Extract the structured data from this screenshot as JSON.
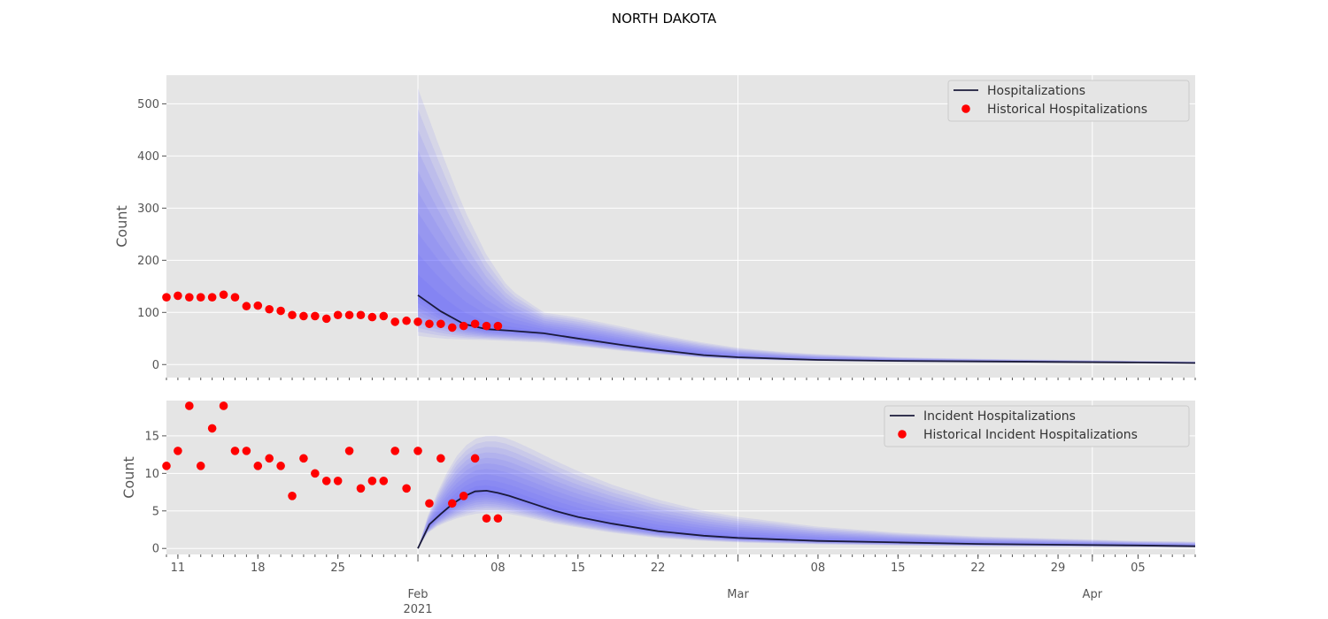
{
  "title": "NORTH DAKOTA",
  "colors": {
    "band": "#5555ff",
    "median": "#1a1a3a",
    "historical": "#ff0000",
    "panel": "#e5e5e5",
    "grid": "#ffffff"
  },
  "x_axis": {
    "start": "2021-01-10",
    "end": "2021-04-10",
    "day_ticks": [
      {
        "date": "2021-01-11",
        "label": "11"
      },
      {
        "date": "2021-01-18",
        "label": "18"
      },
      {
        "date": "2021-01-25",
        "label": "25"
      },
      {
        "date": "2021-02-08",
        "label": "08"
      },
      {
        "date": "2021-02-15",
        "label": "15"
      },
      {
        "date": "2021-02-22",
        "label": "22"
      },
      {
        "date": "2021-03-08",
        "label": "08"
      },
      {
        "date": "2021-03-15",
        "label": "15"
      },
      {
        "date": "2021-03-22",
        "label": "22"
      },
      {
        "date": "2021-03-29",
        "label": "29"
      },
      {
        "date": "2021-04-05",
        "label": "05"
      }
    ],
    "month_ticks": [
      {
        "date": "2021-02-01",
        "label": "Feb",
        "sublabel": "2021"
      },
      {
        "date": "2021-03-01",
        "label": "Mar",
        "sublabel": ""
      },
      {
        "date": "2021-04-01",
        "label": "Apr",
        "sublabel": ""
      }
    ]
  },
  "chart_data": [
    {
      "type": "line",
      "ylabel": "Count",
      "ylim": [
        -25,
        555
      ],
      "yticks": [
        0,
        100,
        200,
        300,
        400,
        500
      ],
      "legend_position": "top-right",
      "series": [
        {
          "name": "Hospitalizations",
          "kind": "line",
          "x": [
            "2021-02-01",
            "2021-02-03",
            "2021-02-05",
            "2021-02-07",
            "2021-02-09",
            "2021-02-12",
            "2021-02-15",
            "2021-02-19",
            "2021-02-22",
            "2021-02-26",
            "2021-03-01",
            "2021-03-05",
            "2021-03-08",
            "2021-03-15",
            "2021-03-22",
            "2021-03-29",
            "2021-04-05",
            "2021-04-10"
          ],
          "y": [
            133,
            102,
            78,
            68,
            65,
            60,
            50,
            37,
            28,
            18,
            14,
            11,
            9,
            7,
            6,
            5,
            4,
            3
          ]
        },
        {
          "name": "Historical Hospitalizations",
          "kind": "scatter",
          "x": [
            "2021-01-10",
            "2021-01-11",
            "2021-01-12",
            "2021-01-13",
            "2021-01-14",
            "2021-01-15",
            "2021-01-16",
            "2021-01-17",
            "2021-01-18",
            "2021-01-19",
            "2021-01-20",
            "2021-01-21",
            "2021-01-22",
            "2021-01-23",
            "2021-01-24",
            "2021-01-25",
            "2021-01-26",
            "2021-01-27",
            "2021-01-28",
            "2021-01-29",
            "2021-01-30",
            "2021-01-31",
            "2021-02-01",
            "2021-02-02",
            "2021-02-03",
            "2021-02-04",
            "2021-02-05",
            "2021-02-06",
            "2021-02-07",
            "2021-02-08"
          ],
          "y": [
            129,
            132,
            129,
            129,
            129,
            134,
            129,
            112,
            113,
            106,
            103,
            95,
            93,
            93,
            88,
            95,
            95,
            95,
            91,
            93,
            82,
            84,
            82,
            78,
            78,
            71,
            74,
            78,
            74,
            74
          ]
        }
      ],
      "band": {
        "x": [
          "2021-02-01",
          "2021-02-03",
          "2021-02-05",
          "2021-02-07",
          "2021-02-09",
          "2021-02-12",
          "2021-02-15",
          "2021-02-19",
          "2021-02-22",
          "2021-02-26",
          "2021-03-01",
          "2021-03-05",
          "2021-03-08",
          "2021-03-15",
          "2021-03-22",
          "2021-03-29",
          "2021-04-05",
          "2021-04-10"
        ],
        "upper": [
          530,
          410,
          300,
          210,
          145,
          100,
          90,
          72,
          58,
          42,
          32,
          24,
          20,
          14,
          11,
          9,
          7,
          6
        ],
        "lower": [
          55,
          50,
          48,
          47,
          45,
          42,
          35,
          26,
          20,
          13,
          10,
          8,
          7,
          5,
          4,
          3.5,
          3,
          2.5
        ]
      }
    },
    {
      "type": "line",
      "ylabel": "Count",
      "ylim": [
        -0.8,
        19.7
      ],
      "yticks": [
        0,
        5,
        10,
        15
      ],
      "legend_position": "top-right",
      "series": [
        {
          "name": "Incident Hospitalizations",
          "kind": "line",
          "x": [
            "2021-02-01",
            "2021-02-02",
            "2021-02-03",
            "2021-02-04",
            "2021-02-05",
            "2021-02-06",
            "2021-02-07",
            "2021-02-08",
            "2021-02-09",
            "2021-02-11",
            "2021-02-13",
            "2021-02-15",
            "2021-02-18",
            "2021-02-22",
            "2021-02-26",
            "2021-03-01",
            "2021-03-08",
            "2021-03-15",
            "2021-03-22",
            "2021-03-29",
            "2021-04-05",
            "2021-04-10"
          ],
          "y": [
            0,
            3.2,
            4.6,
            5.9,
            6.9,
            7.6,
            7.7,
            7.4,
            7.0,
            6.0,
            5.0,
            4.2,
            3.3,
            2.3,
            1.7,
            1.4,
            1.0,
            0.8,
            0.6,
            0.5,
            0.4,
            0.3
          ]
        },
        {
          "name": "Historical Incident Hospitalizations",
          "kind": "scatter",
          "x": [
            "2021-01-10",
            "2021-01-11",
            "2021-01-12",
            "2021-01-13",
            "2021-01-14",
            "2021-01-15",
            "2021-01-16",
            "2021-01-17",
            "2021-01-18",
            "2021-01-19",
            "2021-01-20",
            "2021-01-21",
            "2021-01-22",
            "2021-01-23",
            "2021-01-24",
            "2021-01-25",
            "2021-01-26",
            "2021-01-27",
            "2021-01-28",
            "2021-01-29",
            "2021-01-30",
            "2021-01-31",
            "2021-02-01",
            "2021-02-02",
            "2021-02-03",
            "2021-02-04",
            "2021-02-05",
            "2021-02-06",
            "2021-02-07",
            "2021-02-08"
          ],
          "y": [
            11,
            13,
            19,
            11,
            16,
            19,
            13,
            13,
            11,
            12,
            11,
            7,
            12,
            10,
            9,
            9,
            13,
            8,
            9,
            9,
            13,
            8,
            13,
            6,
            12,
            6,
            7,
            12,
            4,
            4
          ]
        }
      ],
      "band": {
        "x": [
          "2021-02-01",
          "2021-02-02",
          "2021-02-03",
          "2021-02-04",
          "2021-02-05",
          "2021-02-06",
          "2021-02-07",
          "2021-02-08",
          "2021-02-09",
          "2021-02-11",
          "2021-02-13",
          "2021-02-15",
          "2021-02-18",
          "2021-02-22",
          "2021-02-26",
          "2021-03-01",
          "2021-03-08",
          "2021-03-15",
          "2021-03-22",
          "2021-03-29",
          "2021-04-05",
          "2021-04-10"
        ],
        "upper": [
          0,
          5.0,
          8.5,
          11.5,
          13.5,
          14.6,
          15.0,
          15.0,
          14.6,
          13.2,
          11.7,
          10.3,
          8.5,
          6.5,
          5.0,
          4.2,
          2.9,
          2.1,
          1.6,
          1.3,
          1.0,
          0.9
        ],
        "lower": [
          0,
          2.4,
          3.2,
          3.8,
          4.3,
          4.6,
          4.8,
          4.8,
          4.6,
          4.0,
          3.3,
          2.8,
          2.1,
          1.4,
          1.0,
          0.8,
          0.55,
          0.4,
          0.3,
          0.25,
          0.2,
          0.15
        ]
      }
    }
  ]
}
